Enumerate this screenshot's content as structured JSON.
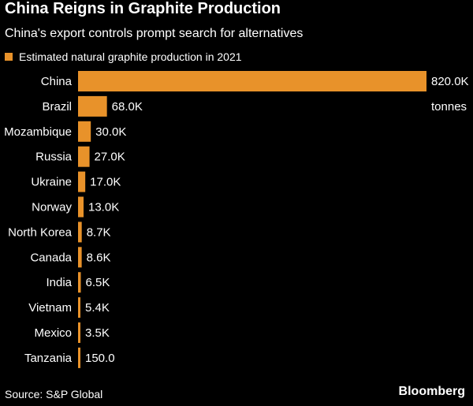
{
  "header": {
    "title": "China Reigns in Graphite Production",
    "subtitle": "China's export controls prompt search for alternatives"
  },
  "footer": {
    "source": "Source: S&P Global",
    "brand": "Bloomberg"
  },
  "colors": {
    "bar": "#E8922A",
    "background": "#000000",
    "text": "#FFFFFF"
  },
  "chart_data": {
    "type": "bar",
    "orientation": "horizontal",
    "title": "China Reigns in Graphite Production",
    "subtitle": "China's export controls prompt search for alternatives",
    "legend_position": "top-left",
    "unit_label": "tonnes",
    "grid": false,
    "xlim": [
      0,
      820000
    ],
    "categories": [
      "China",
      "Brazil",
      "Mozambique",
      "Russia",
      "Ukraine",
      "Norway",
      "North Korea",
      "Canada",
      "India",
      "Vietnam",
      "Mexico",
      "Tanzania"
    ],
    "series": [
      {
        "name": "Estimated natural graphite production in 2021",
        "values": [
          820000,
          68000,
          30000,
          27000,
          17000,
          13000,
          8700,
          8600,
          6500,
          5400,
          3500,
          150
        ],
        "labels": [
          "820.0K",
          "68.0K",
          "30.0K",
          "27.0K",
          "17.0K",
          "13.0K",
          "8.7K",
          "8.6K",
          "6.5K",
          "5.4K",
          "3.5K",
          "150.0"
        ]
      }
    ]
  }
}
